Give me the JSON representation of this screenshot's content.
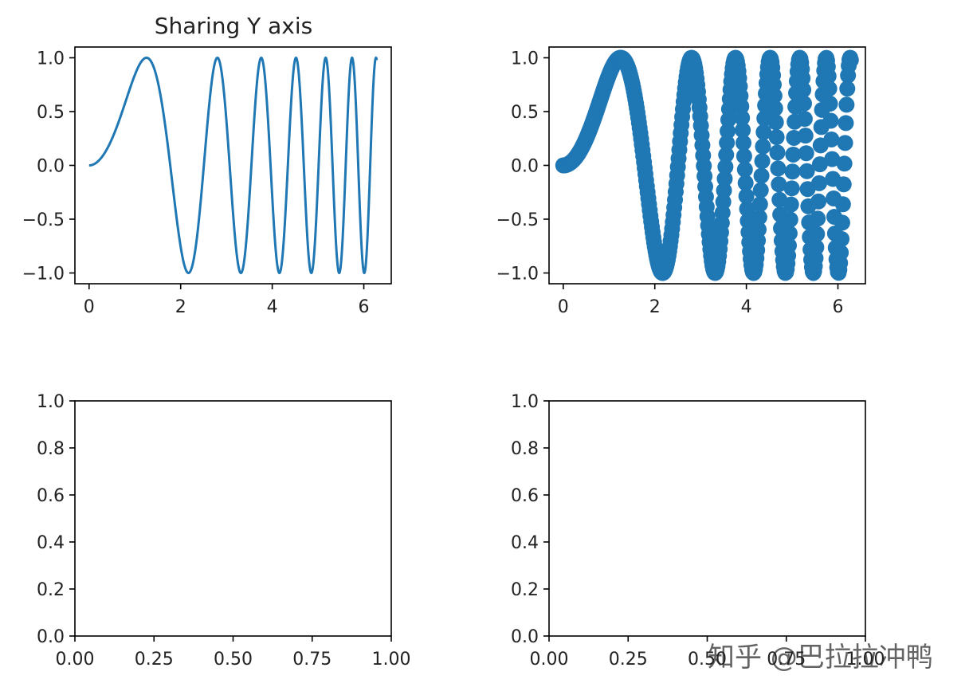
{
  "chart_data": [
    {
      "type": "line",
      "title": "Sharing Y axis",
      "xlabel": "",
      "ylabel": "",
      "function": "y = sin(x^2)",
      "x_range": [
        0,
        6.283
      ],
      "xlim": [
        -0.31,
        6.6
      ],
      "ylim": [
        -1.1,
        1.1
      ],
      "xticks": [
        "0",
        "2",
        "4",
        "6"
      ],
      "xtick_values": [
        0,
        2,
        4,
        6
      ],
      "yticks": [
        "1.0",
        "0.5",
        "0.0",
        "−0.5",
        "−1.0"
      ],
      "ytick_values": [
        1.0,
        0.5,
        0.0,
        -0.5,
        -1.0
      ],
      "series_color": "#1f77b4",
      "grid": false
    },
    {
      "type": "scatter",
      "title": "",
      "xlabel": "",
      "ylabel": "",
      "function": "y = sin(x^2)",
      "x_range": [
        0,
        6.283
      ],
      "points": 400,
      "xlim": [
        -0.31,
        6.6
      ],
      "ylim": [
        -1.1,
        1.1
      ],
      "xticks": [
        "0",
        "2",
        "4",
        "6"
      ],
      "xtick_values": [
        0,
        2,
        4,
        6
      ],
      "yticks": [
        "1.0",
        "0.5",
        "0.0",
        "−0.5",
        "−1.0"
      ],
      "ytick_values": [
        1.0,
        0.5,
        0.0,
        -0.5,
        -1.0
      ],
      "series_color": "#1f77b4",
      "grid": false
    },
    {
      "type": "line",
      "title": "",
      "empty": true,
      "xlim": [
        0,
        1
      ],
      "ylim": [
        0,
        1
      ],
      "xticks": [
        "0.00",
        "0.25",
        "0.50",
        "0.75",
        "1.00"
      ],
      "xtick_values": [
        0,
        0.25,
        0.5,
        0.75,
        1.0
      ],
      "yticks": [
        "1.0",
        "0.8",
        "0.6",
        "0.4",
        "0.2",
        "0.0"
      ],
      "ytick_values": [
        1.0,
        0.8,
        0.6,
        0.4,
        0.2,
        0.0
      ],
      "grid": false
    },
    {
      "type": "line",
      "title": "",
      "empty": true,
      "xlim": [
        0,
        1
      ],
      "ylim": [
        0,
        1
      ],
      "xticks": [
        "0.00",
        "0.25",
        "0.50",
        "0.75",
        "1.00"
      ],
      "xtick_values": [
        0,
        0.25,
        0.5,
        0.75,
        1.0
      ],
      "yticks": [
        "1.0",
        "0.8",
        "0.6",
        "0.4",
        "0.2",
        "0.0"
      ],
      "ytick_values": [
        1.0,
        0.8,
        0.6,
        0.4,
        0.2,
        0.0
      ],
      "grid": false
    }
  ],
  "watermark": "知乎 @巴拉拉冲鸭"
}
